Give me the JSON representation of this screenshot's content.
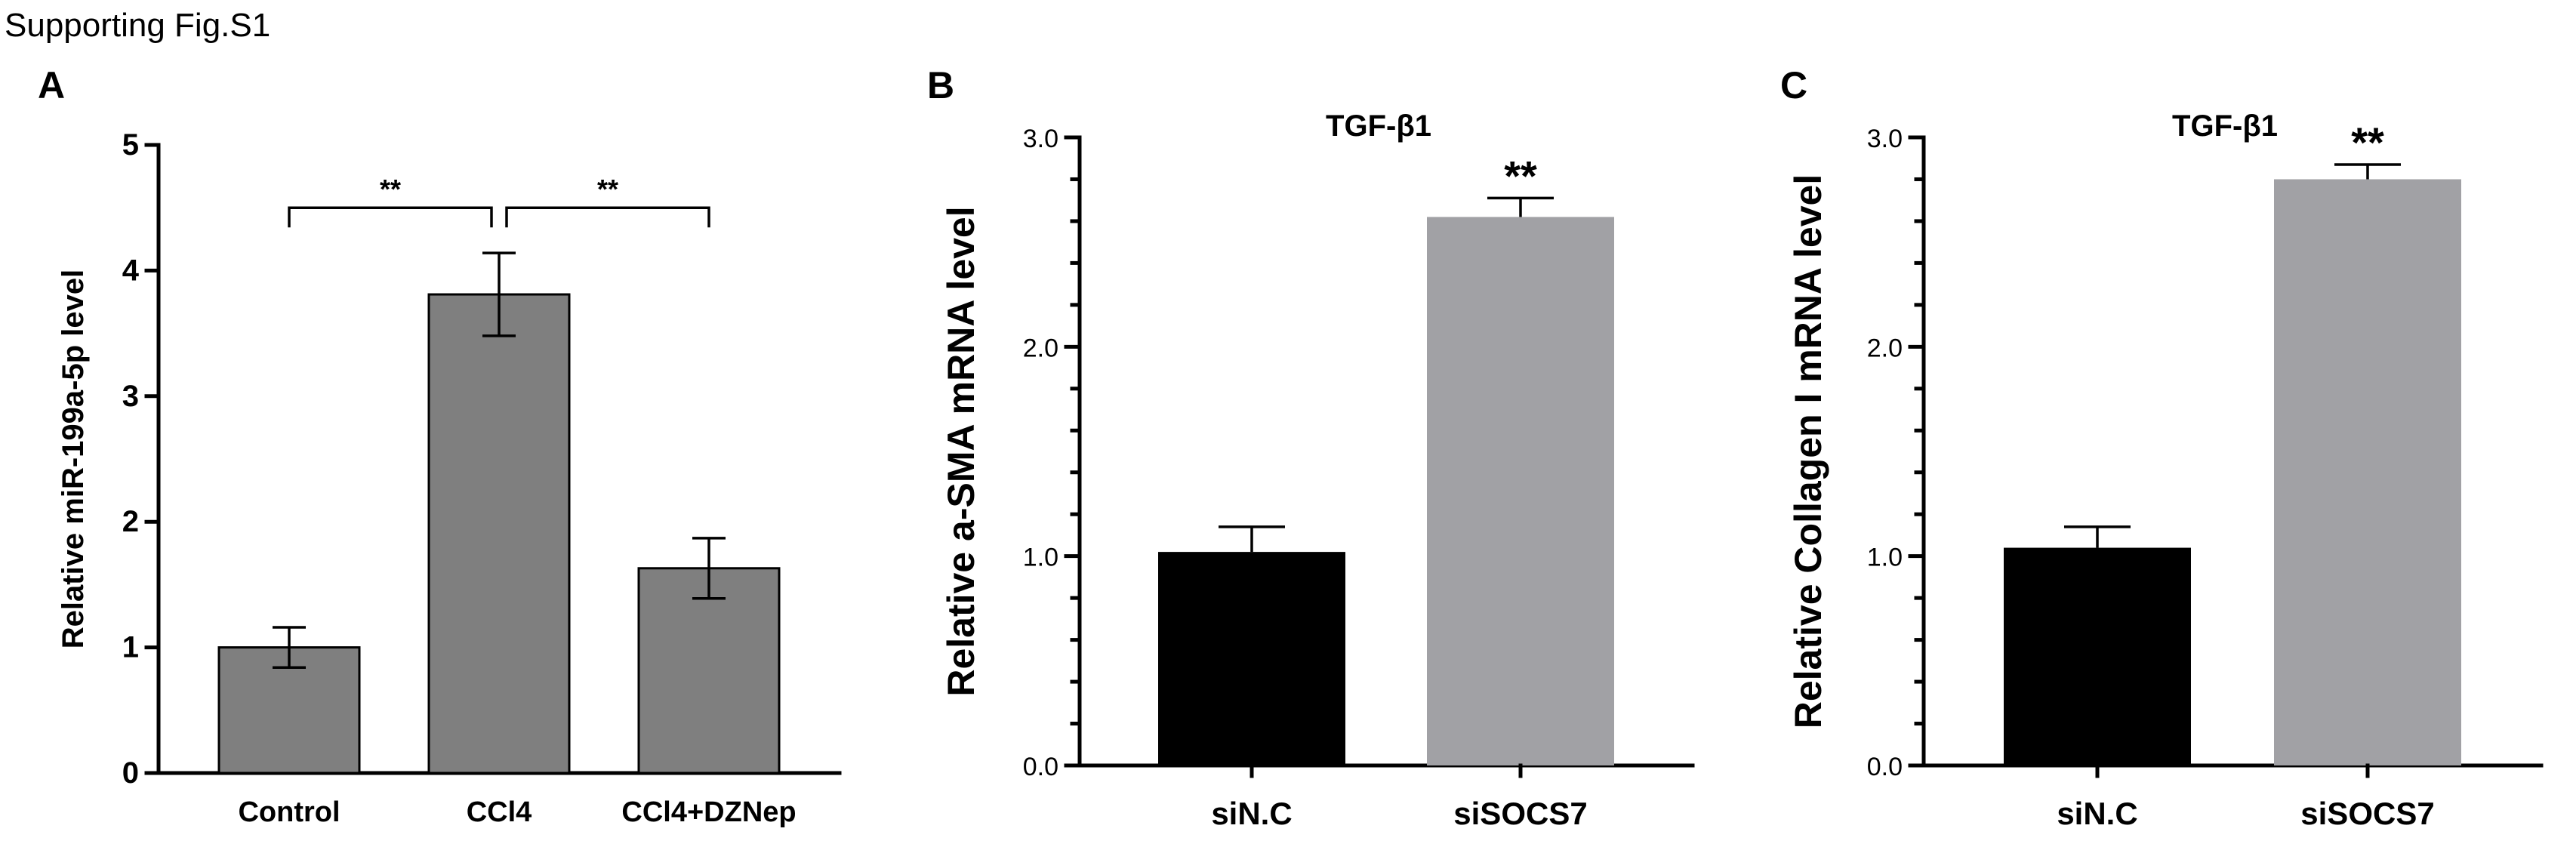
{
  "figure_title": "Supporting Fig.S1",
  "chart_data": [
    {
      "panel": "A",
      "type": "bar",
      "categories": [
        "Control",
        "CCl4",
        "CCl4+DZNep"
      ],
      "values": [
        1.0,
        3.81,
        1.63
      ],
      "errors": [
        0.16,
        0.33,
        0.24
      ],
      "ylabel": "Relative miR-199a-5p level",
      "ylim": [
        0,
        5
      ],
      "yticks": [
        0,
        1,
        2,
        3,
        4,
        5
      ],
      "ytick_labels": [
        "0",
        "1",
        "2",
        "3",
        "4",
        "5"
      ],
      "bar_colors": [
        "#7f7f7f",
        "#7f7f7f",
        "#7f7f7f"
      ],
      "significance": [
        {
          "from": 0,
          "to": 1,
          "label": "**"
        },
        {
          "from": 1,
          "to": 2,
          "label": "**"
        }
      ]
    },
    {
      "panel": "B",
      "type": "bar",
      "title": "TGF-β1",
      "categories": [
        "siN.C",
        "siSOCS7"
      ],
      "values": [
        1.02,
        2.62
      ],
      "errors": [
        0.12,
        0.09
      ],
      "ylabel": "Relative a-SMA mRNA level",
      "ylim": [
        0,
        3
      ],
      "yticks": [
        0,
        1,
        2,
        3
      ],
      "ytick_labels": [
        "0.0",
        "1.0",
        "2.0",
        "3.0"
      ],
      "bar_colors": [
        "#000000",
        "#a1a1a5"
      ],
      "annotations": [
        {
          "bar": 1,
          "label": "**"
        }
      ]
    },
    {
      "panel": "C",
      "type": "bar",
      "title": "TGF-β1",
      "categories": [
        "siN.C",
        "siSOCS7"
      ],
      "values": [
        1.04,
        2.8
      ],
      "errors": [
        0.1,
        0.07
      ],
      "ylabel": "Relative Collagen I mRNA level",
      "ylim": [
        0,
        3
      ],
      "yticks": [
        0,
        1,
        2,
        3
      ],
      "ytick_labels": [
        "0.0",
        "1.0",
        "2.0",
        "3.0"
      ],
      "bar_colors": [
        "#000000",
        "#a1a1a5"
      ],
      "annotations": [
        {
          "bar": 1,
          "label": "**"
        }
      ]
    }
  ]
}
